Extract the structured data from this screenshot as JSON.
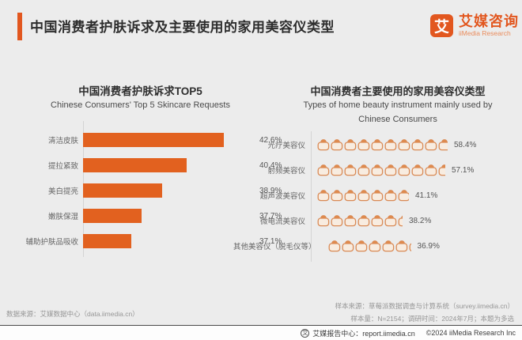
{
  "page": {
    "background": "#ECECEC",
    "accent_color": "#E2571F"
  },
  "header": {
    "title": "中国消费者护肤诉求及主要使用的家用美容仪类型",
    "logo": {
      "mark": "艾",
      "brand_cn": "艾媒咨询",
      "brand_en": "iiMedia Research"
    }
  },
  "chart_data": [
    {
      "type": "bar",
      "orientation": "horizontal",
      "title": "中国消费者护肤诉求TOP5",
      "subtitle": "Chinese Consumers' Top 5 Skincare Requests",
      "categories": [
        "清洁皮肤",
        "提拉紧致",
        "美白提亮",
        "嫩肤保湿",
        "辅助护肤品吸收"
      ],
      "values": [
        42.6,
        40.4,
        38.9,
        37.7,
        37.1
      ],
      "unit": "%",
      "bar_color": "#E2611F",
      "xlim": [
        34.2,
        44.4
      ],
      "grid": false,
      "legend": "none"
    },
    {
      "type": "pictograph",
      "title": "中国消费者主要使用的家用美容仪类型",
      "subtitle_lines": [
        "Types of home beauty instrument mainly used by",
        "Chinese Consumers"
      ],
      "categories": [
        "光疗美容仪",
        "射频美容仪",
        "超声波美容仪",
        "微电流美容仪",
        "其他美容仪（脱毛仪等）"
      ],
      "values": [
        58.4,
        57.1,
        41.1,
        38.2,
        36.9
      ],
      "unit": "%",
      "icon": "beauty-device-icon",
      "percent_per_icon": 6,
      "icon_stroke_color": "#D98A55",
      "icon_fill_color": "#F8ECE0",
      "icon_lid_color": "#E08A4C"
    }
  ],
  "footer": {
    "data_source": "数据来源：艾媒数据中心（data.iimedia.cn）",
    "sample_source": "样本来源：草莓派数据调查与计算系统（survey.iimedia.cn）",
    "sample_info": "样本量：N=2154；调研时间：2024年7月；本题为多选"
  },
  "bottom_bar": {
    "mark": "艾",
    "report_center": "艾媒报告中心：report.iimedia.cn",
    "copyright": "©2024  iiMedia Research  Inc"
  }
}
